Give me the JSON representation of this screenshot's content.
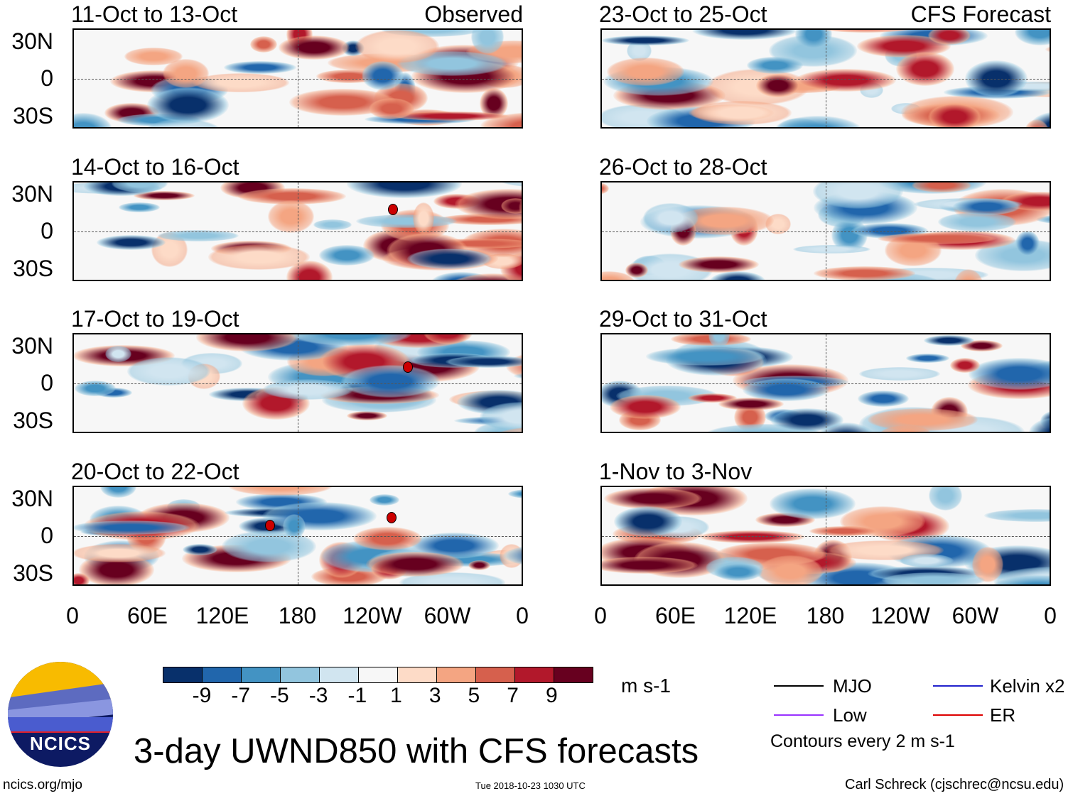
{
  "panels": [
    {
      "title": "11-Oct to 13-Oct",
      "label": "Observed"
    },
    {
      "title": "14-Oct to 16-Oct"
    },
    {
      "title": "17-Oct to 19-Oct"
    },
    {
      "title": "20-Oct to 22-Oct"
    },
    {
      "title": "23-Oct to 25-Oct",
      "label": "CFS Forecast"
    },
    {
      "title": "26-Oct to 28-Oct"
    },
    {
      "title": "29-Oct to 31-Oct"
    },
    {
      "title": "1-Nov to 3-Nov"
    }
  ],
  "lat_labels": [
    "30N",
    "0",
    "30S"
  ],
  "lon_labels": [
    "0",
    "60E",
    "120E",
    "180",
    "120W",
    "60W",
    "0"
  ],
  "colorbar": {
    "colors": [
      "#08306b",
      "#2166ac",
      "#4393c3",
      "#92c5de",
      "#d1e5f0",
      "#f7f7f7",
      "#fddbc7",
      "#f4a582",
      "#d6604d",
      "#b2182b",
      "#67001f"
    ],
    "labels": [
      "-9",
      "-7",
      "-5",
      "-3",
      "-1",
      "1",
      "3",
      "5",
      "7",
      "9"
    ],
    "units": "m s-1"
  },
  "legend": {
    "items": [
      {
        "label": "MJO",
        "color": "#000000"
      },
      {
        "label": "Kelvin x2",
        "color": "#2222cc"
      },
      {
        "label": "Low",
        "color": "#9933ff"
      },
      {
        "label": "ER",
        "color": "#dd0000"
      }
    ],
    "note": "Contours every 2 m s-1"
  },
  "title": "3-day UWND850 with CFS forecasts",
  "logo_text": "NCICS",
  "url": "ncics.org/mjo",
  "timestamp": "Tue 2018-10-23 1030 UTC",
  "author": "Carl Schreck (cjschrec@ncsu.edu)"
}
